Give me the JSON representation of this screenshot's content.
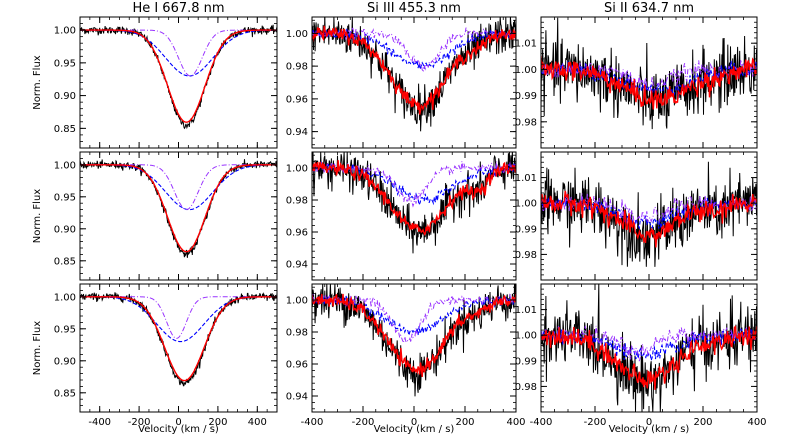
{
  "chart_data": {
    "type": "line",
    "column_titles": [
      "He I 667.8 nm",
      "Si III 455.3 nm",
      "Si II 634.7 nm"
    ],
    "xlabel": "Velocity (km / s)",
    "ylabel": "Norm. Flux",
    "line_colors": {
      "observed": "#000000",
      "model": "#ff0000",
      "component_1": "#0000ff",
      "component_2": "#9933ff"
    },
    "columns": [
      {
        "xlim": [
          -500,
          500
        ],
        "xticks": [
          -400,
          -200,
          0,
          200,
          400
        ],
        "ylim": [
          0.82,
          1.02
        ],
        "yticks": [
          0.85,
          0.9,
          0.95,
          1.0
        ],
        "ytick_labels": [
          "0.85",
          "0.90",
          "0.95",
          "1.00"
        ],
        "rows": [
          {
            "center": 40,
            "depth": 0.145,
            "width": 95,
            "noise": 0.003,
            "blue": {
              "center": 55,
              "depth": 0.07,
              "width": 120
            },
            "violet": {
              "center": 60,
              "depth": 0.07,
              "width": 60
            }
          },
          {
            "center": 40,
            "depth": 0.14,
            "width": 95,
            "noise": 0.003,
            "blue": {
              "center": 55,
              "depth": 0.07,
              "width": 120
            },
            "violet": {
              "center": 40,
              "depth": 0.07,
              "width": 60
            }
          },
          {
            "center": 30,
            "depth": 0.135,
            "width": 100,
            "noise": 0.003,
            "blue": {
              "center": 10,
              "depth": 0.07,
              "width": 120
            },
            "violet": {
              "center": -10,
              "depth": 0.065,
              "width": 50
            }
          }
        ]
      },
      {
        "xlim": [
          -400,
          400
        ],
        "xticks": [
          -400,
          -200,
          0,
          200,
          400
        ],
        "ylim": [
          0.93,
          1.01
        ],
        "yticks": [
          0.94,
          0.96,
          0.98,
          1.0
        ],
        "ytick_labels": [
          "0.94",
          "0.96",
          "0.98",
          "1.00"
        ],
        "rows": [
          {
            "center": 20,
            "depth": 0.045,
            "width": 110,
            "noise": 0.006,
            "blue": {
              "center": 30,
              "depth": 0.02,
              "width": 110
            },
            "violet": {
              "center": 40,
              "depth": 0.02,
              "width": 60
            }
          },
          {
            "center": 20,
            "depth": 0.04,
            "width": 110,
            "noise": 0.006,
            "blue": {
              "center": 40,
              "depth": 0.02,
              "width": 110
            },
            "violet": {
              "center": -10,
              "depth": 0.02,
              "width": 60
            }
          },
          {
            "center": 10,
            "depth": 0.045,
            "width": 110,
            "noise": 0.006,
            "blue": {
              "center": 0,
              "depth": 0.02,
              "width": 110
            },
            "violet": {
              "center": -30,
              "depth": 0.025,
              "width": 55
            }
          }
        ]
      },
      {
        "xlim": [
          -400,
          400
        ],
        "xticks": [
          -400,
          -200,
          0,
          200,
          400
        ],
        "ylim": [
          0.97,
          1.02
        ],
        "yticks": [
          0.98,
          0.99,
          1.0,
          1.01
        ],
        "ytick_labels": [
          "0.98",
          "0.99",
          "1.00",
          "1.01"
        ],
        "rows": [
          {
            "center": 30,
            "depth": 0.012,
            "width": 120,
            "noise": 0.006,
            "blue": {
              "center": 30,
              "depth": 0.008,
              "width": 120
            },
            "violet": {
              "center": 10,
              "depth": 0.006,
              "width": 70
            }
          },
          {
            "center": 0,
            "depth": 0.013,
            "width": 100,
            "noise": 0.006,
            "blue": {
              "center": 0,
              "depth": 0.008,
              "width": 100
            },
            "violet": {
              "center": -20,
              "depth": 0.006,
              "width": 70
            }
          },
          {
            "center": -10,
            "depth": 0.018,
            "width": 110,
            "noise": 0.006,
            "blue": {
              "center": -20,
              "depth": 0.008,
              "width": 110
            },
            "violet": {
              "center": -40,
              "depth": 0.007,
              "width": 60
            }
          }
        ]
      }
    ]
  }
}
